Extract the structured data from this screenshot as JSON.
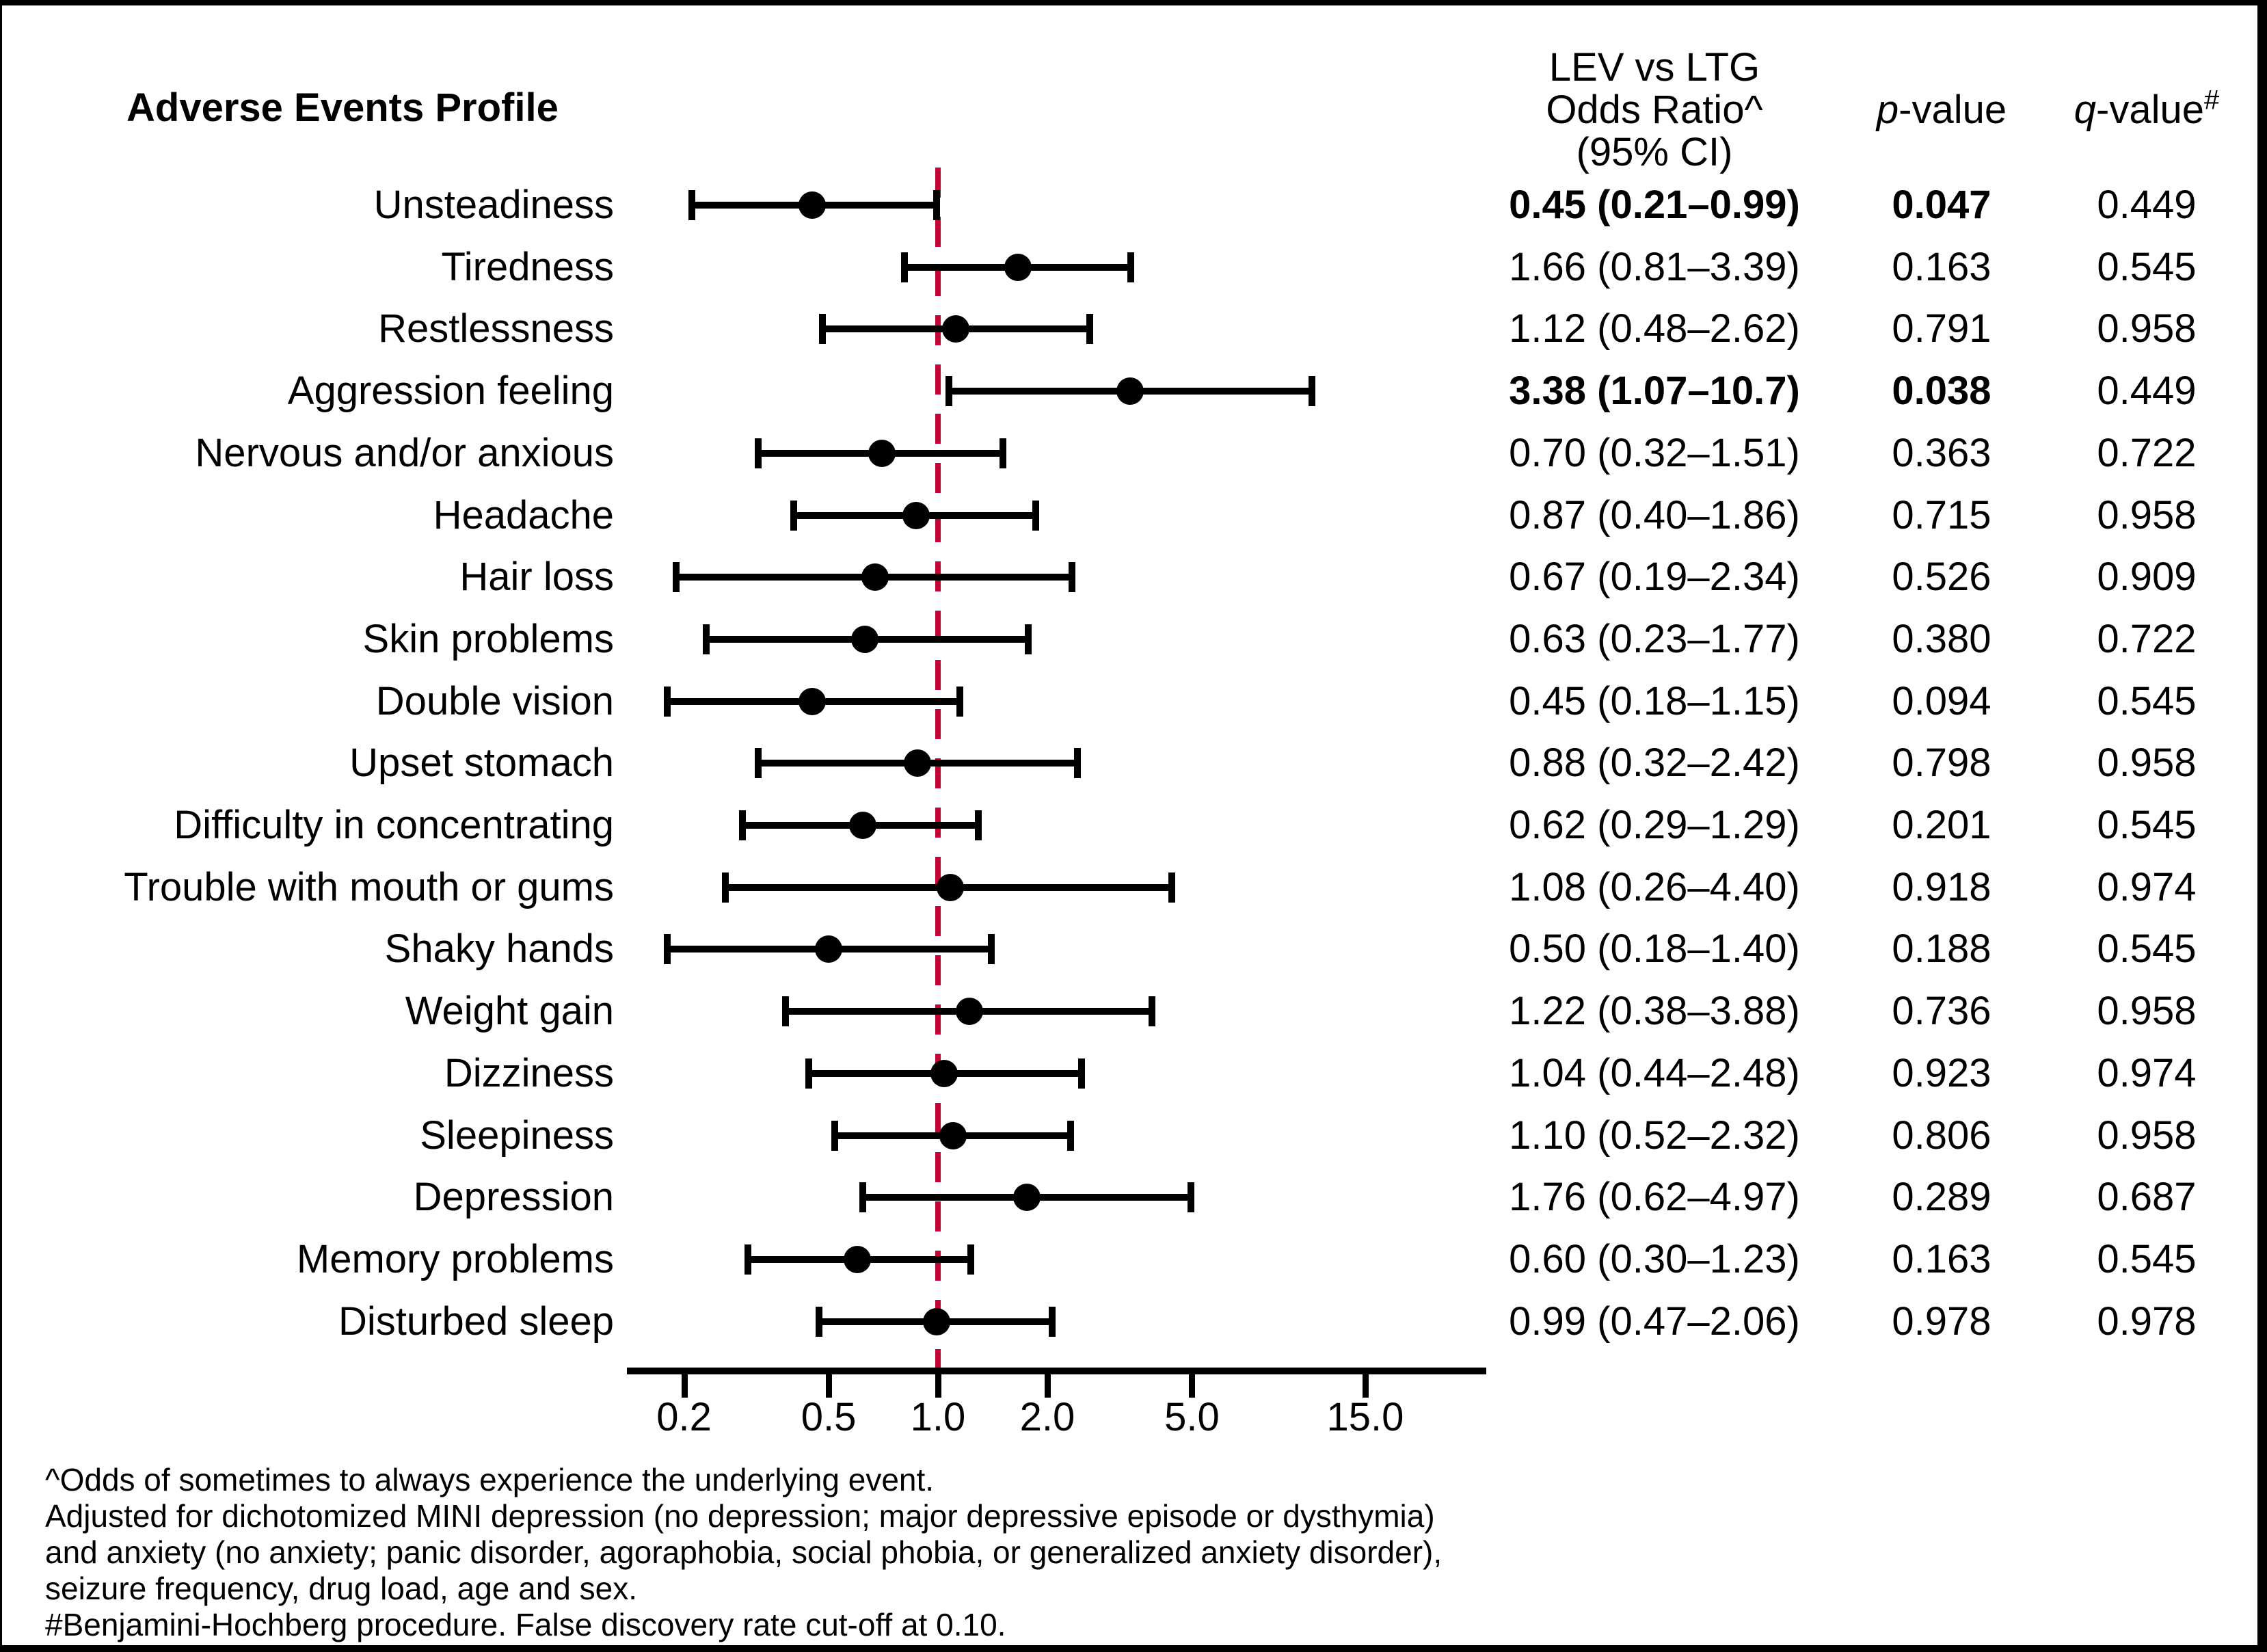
{
  "title": "Adverse Events Profile",
  "header": {
    "or_lines": [
      "LEV vs LTG",
      "Odds Ratio^",
      "(95% CI)"
    ],
    "p_col": {
      "letter": "p",
      "rest": "-value",
      "sup": ""
    },
    "q_col": {
      "letter": "q",
      "rest": "-value",
      "sup": "#"
    }
  },
  "colors": {
    "reference_line": "#C10534",
    "marker": "#000000"
  },
  "chart_data": {
    "type": "forest",
    "x_scale": "log",
    "x_ticks": [
      0.2,
      0.5,
      1.0,
      2.0,
      5.0,
      15.0
    ],
    "x_tick_labels": [
      "0.2",
      "0.5",
      "1.0",
      "2.0",
      "5.0",
      "15.0"
    ],
    "x_axis_range": [
      0.14,
      32
    ],
    "reference_line_value": 1.0,
    "rows": [
      {
        "label": "Unsteadiness",
        "or": 0.45,
        "lo": 0.21,
        "hi": 0.99,
        "or_text": "0.45 (0.21–0.99)",
        "p": "0.047",
        "q": "0.449",
        "bold": true
      },
      {
        "label": "Tiredness",
        "or": 1.66,
        "lo": 0.81,
        "hi": 3.39,
        "or_text": "1.66 (0.81–3.39)",
        "p": "0.163",
        "q": "0.545",
        "bold": false
      },
      {
        "label": "Restlessness",
        "or": 1.12,
        "lo": 0.48,
        "hi": 2.62,
        "or_text": "1.12 (0.48–2.62)",
        "p": "0.791",
        "q": "0.958",
        "bold": false
      },
      {
        "label": "Aggression feeling",
        "or": 3.38,
        "lo": 1.07,
        "hi": 10.7,
        "or_text": "3.38 (1.07–10.7)",
        "p": "0.038",
        "q": "0.449",
        "bold": true
      },
      {
        "label": "Nervous and/or anxious",
        "or": 0.7,
        "lo": 0.32,
        "hi": 1.51,
        "or_text": "0.70 (0.32–1.51)",
        "p": "0.363",
        "q": "0.722",
        "bold": false
      },
      {
        "label": "Headache",
        "or": 0.87,
        "lo": 0.4,
        "hi": 1.86,
        "or_text": "0.87 (0.40–1.86)",
        "p": "0.715",
        "q": "0.958",
        "bold": false
      },
      {
        "label": "Hair loss",
        "or": 0.67,
        "lo": 0.19,
        "hi": 2.34,
        "or_text": "0.67 (0.19–2.34)",
        "p": "0.526",
        "q": "0.909",
        "bold": false
      },
      {
        "label": "Skin problems",
        "or": 0.63,
        "lo": 0.23,
        "hi": 1.77,
        "or_text": "0.63 (0.23–1.77)",
        "p": "0.380",
        "q": "0.722",
        "bold": false
      },
      {
        "label": "Double vision",
        "or": 0.45,
        "lo": 0.18,
        "hi": 1.15,
        "or_text": "0.45 (0.18–1.15)",
        "p": "0.094",
        "q": "0.545",
        "bold": false
      },
      {
        "label": "Upset stomach",
        "or": 0.88,
        "lo": 0.32,
        "hi": 2.42,
        "or_text": "0.88 (0.32–2.42)",
        "p": "0.798",
        "q": "0.958",
        "bold": false
      },
      {
        "label": "Difficulty in concentrating",
        "or": 0.62,
        "lo": 0.29,
        "hi": 1.29,
        "or_text": "0.62 (0.29–1.29)",
        "p": "0.201",
        "q": "0.545",
        "bold": false
      },
      {
        "label": "Trouble with mouth or gums",
        "or": 1.08,
        "lo": 0.26,
        "hi": 4.4,
        "or_text": "1.08 (0.26–4.40)",
        "p": "0.918",
        "q": "0.974",
        "bold": false
      },
      {
        "label": "Shaky hands",
        "or": 0.5,
        "lo": 0.18,
        "hi": 1.4,
        "or_text": "0.50 (0.18–1.40)",
        "p": "0.188",
        "q": "0.545",
        "bold": false
      },
      {
        "label": "Weight gain",
        "or": 1.22,
        "lo": 0.38,
        "hi": 3.88,
        "or_text": "1.22 (0.38–3.88)",
        "p": "0.736",
        "q": "0.958",
        "bold": false
      },
      {
        "label": "Dizziness",
        "or": 1.04,
        "lo": 0.44,
        "hi": 2.48,
        "or_text": "1.04 (0.44–2.48)",
        "p": "0.923",
        "q": "0.974",
        "bold": false
      },
      {
        "label": "Sleepiness",
        "or": 1.1,
        "lo": 0.52,
        "hi": 2.32,
        "or_text": "1.10 (0.52–2.32)",
        "p": "0.806",
        "q": "0.958",
        "bold": false
      },
      {
        "label": "Depression",
        "or": 1.76,
        "lo": 0.62,
        "hi": 4.97,
        "or_text": "1.76 (0.62–4.97)",
        "p": "0.289",
        "q": "0.687",
        "bold": false
      },
      {
        "label": "Memory problems",
        "or": 0.6,
        "lo": 0.3,
        "hi": 1.23,
        "or_text": "0.60 (0.30–1.23)",
        "p": "0.163",
        "q": "0.545",
        "bold": false
      },
      {
        "label": "Disturbed sleep",
        "or": 0.99,
        "lo": 0.47,
        "hi": 2.06,
        "or_text": "0.99 (0.47–2.06)",
        "p": "0.978",
        "q": "0.978",
        "bold": false
      }
    ]
  },
  "footnotes": [
    "^Odds of sometimes to always experience the underlying event.",
    "Adjusted for dichotomized MINI depression (no depression; major depressive episode or dysthymia)",
    "and anxiety (no anxiety; panic disorder, agoraphobia, social phobia, or generalized anxiety disorder),",
    "seizure frequency, drug load, age and sex.",
    "#Benjamini-Hochberg procedure. False discovery rate cut-off at 0.10."
  ]
}
